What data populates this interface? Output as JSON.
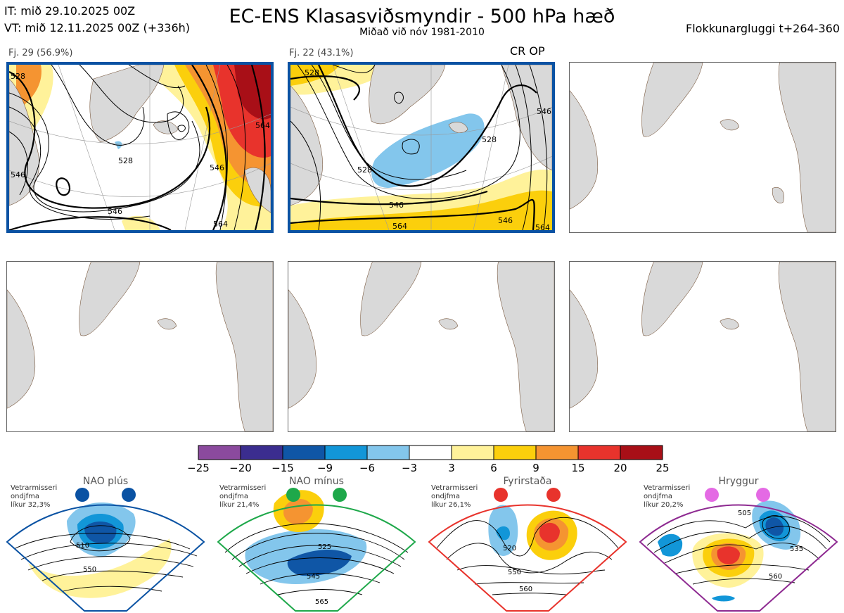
{
  "header": {
    "it_line": "IT: mið 29.10.2025 00Z",
    "vt_line": "VT: mið 12.11.2025 00Z  (+336h)",
    "title": "EC-ENS Klasasviðsmyndir - 500 hPa hæð",
    "subtitle": "Miðað við nóv 1981-2010",
    "window": "Flokkunargluggi t+264-360"
  },
  "clusters": [
    {
      "label": "Fj. 29 (56.9%)",
      "contours": [
        "528",
        "546",
        "564",
        "546",
        "528",
        "546",
        "564"
      ]
    },
    {
      "label": "Fj. 22 (43.1%)",
      "tag": "CR OP",
      "contours": [
        "528",
        "528",
        "546",
        "564",
        "546",
        "564",
        "528",
        "546"
      ]
    }
  ],
  "colorbar": {
    "labels": [
      "−25",
      "−20",
      "−15",
      "−9",
      "−6",
      "−3",
      "3",
      "6",
      "9",
      "15",
      "20",
      "25"
    ],
    "colors": [
      "#8b4a9e",
      "#3b2d8f",
      "#0f56a6",
      "#1296d8",
      "#83c6ec",
      "#ffffff",
      "#fff29a",
      "#fbcf0c",
      "#f59431",
      "#e8332c",
      "#a80f17"
    ]
  },
  "regimes": [
    {
      "name": "NAO plús",
      "line1": "Vetrarmisseri",
      "line2": "ondjfma",
      "line3": "líkur 32,3%",
      "contours": [
        "510",
        "550"
      ],
      "color": "#0f56a6"
    },
    {
      "name": "NAO mínus",
      "line1": "Vetrarmisseri",
      "line2": "ondjfma",
      "line3": "líkur 21,4%",
      "contours": [
        "525",
        "545",
        "565"
      ],
      "color": "#1ea84a"
    },
    {
      "name": "Fyrirstaða",
      "line1": "Vetrarmisseri",
      "line2": "ondjfma",
      "line3": "líkur 26,1%",
      "contours": [
        "520",
        "550",
        "560"
      ],
      "color": "#e8332c"
    },
    {
      "name": "Hryggur",
      "line1": "Vetrarmisseri",
      "line2": "ondjfma",
      "line3": "líkur 20,2%",
      "contours": [
        "505",
        "535",
        "560"
      ],
      "color": "#8e2a91"
    }
  ]
}
